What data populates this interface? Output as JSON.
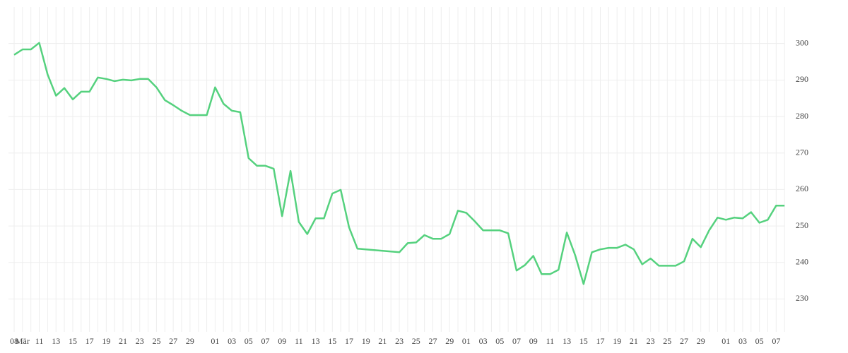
{
  "chart_data": {
    "type": "line",
    "categories": [
      "08",
      "Mär",
      null,
      "11",
      null,
      "13",
      null,
      "15",
      null,
      "17",
      null,
      "19",
      null,
      "21",
      null,
      "23",
      null,
      "25",
      null,
      "27",
      null,
      "29",
      null,
      null,
      "01",
      null,
      "03",
      null,
      "05",
      null,
      "07",
      null,
      "09",
      null,
      "11",
      null,
      "13",
      null,
      "15",
      null,
      "17",
      null,
      "19",
      null,
      "21",
      null,
      "23",
      null,
      "25",
      null,
      "27",
      null,
      "29",
      null,
      "01",
      null,
      "03",
      null,
      "05",
      null,
      "07",
      null,
      "09",
      null,
      "11",
      null,
      "13",
      null,
      "15",
      null,
      "17",
      null,
      "19",
      null,
      "21",
      null,
      "23",
      null,
      "25",
      null,
      "27",
      null,
      "29",
      null,
      null,
      "01",
      null,
      "03",
      null,
      "05",
      null,
      "07",
      null
    ],
    "series": [
      {
        "color": "#55d17e",
        "values": [
          296.9,
          298.4,
          298.4,
          300.2,
          291.5,
          285.7,
          287.8,
          284.7,
          286.8,
          286.8,
          290.7,
          290.3,
          289.7,
          290.1,
          289.9,
          290.3,
          290.3,
          288.0,
          284.5,
          283.1,
          281.6,
          280.4,
          280.4,
          280.4,
          288.0,
          283.5,
          281.6,
          281.2,
          268.6,
          266.5,
          266.5,
          265.7,
          252.7,
          265.1,
          251.1,
          247.8,
          252.1,
          252.1,
          258.9,
          259.9,
          249.6,
          243.8,
          243.6,
          243.4,
          243.2,
          243.0,
          242.8,
          245.3,
          245.5,
          247.5,
          246.5,
          246.5,
          247.8,
          254.2,
          253.6,
          251.3,
          248.8,
          248.8,
          248.8,
          248.0,
          237.8,
          239.3,
          241.8,
          236.8,
          236.8,
          238.0,
          248.2,
          242.0,
          234.1,
          242.8,
          243.6,
          244.0,
          244.0,
          244.9,
          243.6,
          239.5,
          241.1,
          239.1,
          239.1,
          239.1,
          240.3,
          246.5,
          244.2,
          248.8,
          252.3,
          251.7,
          252.3,
          252.1,
          253.8,
          250.9,
          251.7,
          255.6,
          255.6
        ]
      }
    ],
    "ylim": [
      221,
      310
    ],
    "yticks": [
      230,
      240,
      250,
      260,
      270,
      280,
      290,
      300
    ],
    "grid": true
  }
}
